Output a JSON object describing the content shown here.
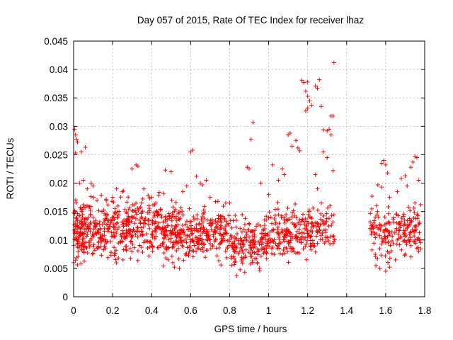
{
  "chart_data": {
    "type": "scatter",
    "title": "Day 057 of 2015, Rate Of TEC Index for receiver lhaz",
    "xlabel": "GPS time / hours",
    "ylabel": "ROTI / TECUs",
    "xlim": [
      0,
      1.8
    ],
    "ylim": [
      0,
      0.045
    ],
    "xticks": [
      "0",
      "0.2",
      "0.4",
      "0.6",
      "0.8",
      "1",
      "1.2",
      "1.4",
      "1.6",
      "1.8"
    ],
    "yticks": [
      "0",
      "0.005",
      "0.01",
      "0.015",
      "0.02",
      "0.025",
      "0.03",
      "0.035",
      "0.04",
      "0.045"
    ],
    "grid": true,
    "legend": "none",
    "marker": "plus",
    "color": "#ff0000",
    "series": [
      {
        "points": [
          [
            0.0,
            0.006
          ],
          [
            0.005,
            0.0295
          ],
          [
            0.01,
            0.0285
          ],
          [
            0.015,
            0.0277
          ],
          [
            0.02,
            0.0272
          ],
          [
            0.01,
            0.0253
          ],
          [
            0.04,
            0.0255
          ],
          [
            0.06,
            0.0263
          ],
          [
            0.03,
            0.02
          ],
          [
            0.05,
            0.0205
          ],
          [
            0.07,
            0.019
          ],
          [
            0.09,
            0.02
          ],
          [
            0.1,
            0.0195
          ],
          [
            0.12,
            0.017
          ],
          [
            0.2,
            0.0175
          ],
          [
            0.22,
            0.019
          ],
          [
            0.25,
            0.0185
          ],
          [
            0.3,
            0.0225
          ],
          [
            0.32,
            0.0232
          ],
          [
            0.33,
            0.023
          ],
          [
            0.36,
            0.019
          ],
          [
            0.4,
            0.0175
          ],
          [
            0.47,
            0.0223
          ],
          [
            0.5,
            0.022
          ],
          [
            0.56,
            0.0185
          ],
          [
            0.58,
            0.0195
          ],
          [
            0.6,
            0.0255
          ],
          [
            0.61,
            0.0258
          ],
          [
            0.63,
            0.0212
          ],
          [
            0.65,
            0.02
          ],
          [
            0.66,
            0.0197
          ],
          [
            0.68,
            0.0205
          ],
          [
            0.7,
            0.0175
          ],
          [
            0.74,
            0.0168
          ],
          [
            0.78,
            0.0165
          ],
          [
            0.8,
            0.0165
          ],
          [
            0.89,
            0.0228
          ],
          [
            0.9,
            0.0225
          ],
          [
            0.91,
            0.0277
          ],
          [
            0.92,
            0.0307
          ],
          [
            0.96,
            0.02
          ],
          [
            1.0,
            0.018
          ],
          [
            1.02,
            0.0232
          ],
          [
            1.05,
            0.0205
          ],
          [
            1.07,
            0.0225
          ],
          [
            1.08,
            0.0215
          ],
          [
            1.1,
            0.0285
          ],
          [
            1.11,
            0.0288
          ],
          [
            1.12,
            0.0265
          ],
          [
            1.14,
            0.0275
          ],
          [
            1.15,
            0.0262
          ],
          [
            1.16,
            0.0257
          ],
          [
            1.17,
            0.0381
          ],
          [
            1.18,
            0.0377
          ],
          [
            1.19,
            0.0362
          ],
          [
            1.2,
            0.0378
          ],
          [
            1.2,
            0.0353
          ],
          [
            1.21,
            0.0345
          ],
          [
            1.19,
            0.0327
          ],
          [
            1.2,
            0.0332
          ],
          [
            1.22,
            0.0337
          ],
          [
            1.24,
            0.0371
          ],
          [
            1.25,
            0.0367
          ],
          [
            1.26,
            0.0382
          ],
          [
            1.27,
            0.0335
          ],
          [
            1.28,
            0.0294
          ],
          [
            1.3,
            0.0292
          ],
          [
            1.31,
            0.0295
          ],
          [
            1.32,
            0.0318
          ],
          [
            1.33,
            0.0318
          ],
          [
            1.335,
            0.0412
          ],
          [
            1.28,
            0.0255
          ],
          [
            1.3,
            0.0245
          ],
          [
            1.32,
            0.0285
          ],
          [
            1.33,
            0.0222
          ],
          [
            1.24,
            0.0215
          ],
          [
            1.25,
            0.019
          ],
          [
            1.27,
            0.0165
          ],
          [
            1.53,
            0.0177
          ],
          [
            1.56,
            0.0197
          ],
          [
            1.58,
            0.0235
          ],
          [
            1.59,
            0.024
          ],
          [
            1.6,
            0.0232
          ],
          [
            1.61,
            0.0218
          ],
          [
            1.58,
            0.0193
          ],
          [
            1.62,
            0.0175
          ],
          [
            1.66,
            0.0185
          ],
          [
            1.68,
            0.0208
          ],
          [
            1.7,
            0.0213
          ],
          [
            1.71,
            0.0195
          ],
          [
            1.73,
            0.0228
          ],
          [
            1.74,
            0.0237
          ],
          [
            1.75,
            0.0247
          ],
          [
            1.76,
            0.0245
          ],
          [
            1.77,
            0.0205
          ],
          [
            1.75,
            0.0165
          ],
          [
            1.55,
            0.0055
          ],
          [
            1.57,
            0.005
          ],
          [
            1.6,
            0.0045
          ],
          [
            1.62,
            0.0052
          ],
          [
            1.65,
            0.0065
          ],
          [
            1.7,
            0.0075
          ],
          [
            1.73,
            0.009
          ],
          [
            1.75,
            0.01
          ],
          [
            1.76,
            0.0085
          ],
          [
            1.6,
            0.0095
          ],
          [
            1.55,
            0.0125
          ],
          [
            1.52,
            0.012
          ]
        ],
        "generated_cloud": true
      }
    ]
  }
}
